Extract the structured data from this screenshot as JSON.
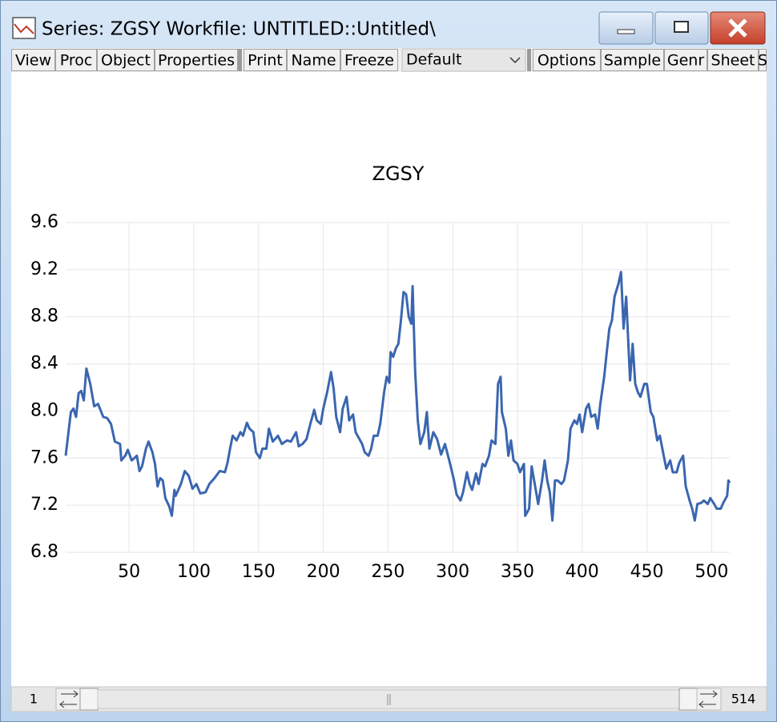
{
  "window": {
    "title": "Series: ZGSY    Workfile: UNTITLED::Untitled\\"
  },
  "toolbar": {
    "buttons": [
      "View",
      "Proc",
      "Object",
      "Properties",
      "Print",
      "Name",
      "Freeze"
    ],
    "dropdown": "Default",
    "buttons_right": [
      "Options",
      "Sample",
      "Genr",
      "Sheet",
      "S"
    ]
  },
  "scrollbar": {
    "start": "1",
    "end": "514"
  },
  "chart_data": {
    "type": "line",
    "title": "ZGSY",
    "color": "#3a66b0",
    "grid": true,
    "xlim": [
      1,
      514
    ],
    "xticks": [
      50,
      100,
      150,
      200,
      250,
      300,
      350,
      400,
      450,
      500
    ],
    "ylim": [
      6.8,
      9.6
    ],
    "yticks": [
      6.8,
      7.2,
      7.6,
      {
        "value": 8,
        "label": "8.0"
      },
      8.4,
      8.8,
      9.2,
      9.6
    ],
    "x": [
      1,
      5,
      7,
      9,
      11,
      13,
      15,
      17,
      20,
      23,
      26,
      30,
      33,
      36,
      39,
      43,
      44,
      47,
      49,
      52,
      56,
      58,
      60,
      63,
      65,
      68,
      70,
      72,
      74,
      76,
      78,
      81,
      83,
      85,
      86,
      90,
      93,
      96,
      99,
      102,
      105,
      109,
      112,
      116,
      120,
      124,
      126,
      128,
      130,
      133,
      136,
      138,
      141,
      143,
      146,
      148,
      151,
      153,
      156,
      158,
      161,
      165,
      168,
      172,
      175,
      179,
      181,
      184,
      187,
      190,
      193,
      195,
      198,
      200,
      203,
      206,
      208,
      210,
      213,
      215,
      218,
      220,
      223,
      225,
      228,
      230,
      232,
      235,
      237,
      239,
      242,
      244,
      247,
      249,
      251,
      252,
      254,
      256,
      258,
      260,
      262,
      264,
      266,
      268,
      269,
      271,
      273,
      275,
      278,
      280,
      282,
      285,
      288,
      291,
      294,
      298,
      301,
      303,
      306,
      308,
      311,
      313,
      315,
      318,
      320,
      323,
      325,
      328,
      330,
      333,
      335,
      337,
      338,
      341,
      343,
      345,
      347,
      350,
      352,
      355,
      356,
      359,
      361,
      364,
      366,
      369,
      371,
      373,
      375,
      377,
      379,
      381,
      384,
      386,
      389,
      391,
      394,
      396,
      398,
      400,
      403,
      405,
      407,
      410,
      412,
      414,
      417,
      419,
      421,
      423,
      425,
      428,
      430,
      432,
      434,
      437,
      439,
      441,
      443,
      445,
      448,
      450,
      453,
      455,
      458,
      460,
      463,
      465,
      468,
      470,
      473,
      475,
      478,
      480,
      483,
      485,
      487,
      489,
      492,
      494,
      497,
      499,
      502,
      504,
      507,
      509,
      512,
      513,
      514
    ],
    "values": [
      7.62,
      7.99,
      8.02,
      7.95,
      8.15,
      8.17,
      8.09,
      8.36,
      8.23,
      8.04,
      8.06,
      7.95,
      7.94,
      7.89,
      7.74,
      7.72,
      7.58,
      7.62,
      7.67,
      7.58,
      7.62,
      7.49,
      7.53,
      7.68,
      7.74,
      7.65,
      7.55,
      7.36,
      7.43,
      7.41,
      7.26,
      7.19,
      7.11,
      7.33,
      7.28,
      7.38,
      7.49,
      7.45,
      7.34,
      7.38,
      7.3,
      7.31,
      7.38,
      7.43,
      7.49,
      7.48,
      7.56,
      7.68,
      7.79,
      7.75,
      7.82,
      7.79,
      7.9,
      7.85,
      7.82,
      7.65,
      7.6,
      7.68,
      7.68,
      7.85,
      7.74,
      7.79,
      7.72,
      7.75,
      7.74,
      7.82,
      7.7,
      7.72,
      7.76,
      7.89,
      8.01,
      7.92,
      7.89,
      8.02,
      8.16,
      8.33,
      8.19,
      7.95,
      7.82,
      8.02,
      8.12,
      7.92,
      7.97,
      7.82,
      7.76,
      7.72,
      7.65,
      7.62,
      7.68,
      7.79,
      7.79,
      7.89,
      8.16,
      8.29,
      8.24,
      8.5,
      8.46,
      8.53,
      8.57,
      8.77,
      9.01,
      8.99,
      8.8,
      8.74,
      9.06,
      8.33,
      7.92,
      7.72,
      7.82,
      7.99,
      7.68,
      7.82,
      7.76,
      7.63,
      7.72,
      7.55,
      7.41,
      7.29,
      7.24,
      7.31,
      7.48,
      7.38,
      7.33,
      7.47,
      7.38,
      7.55,
      7.53,
      7.62,
      7.75,
      7.72,
      8.23,
      8.29,
      7.99,
      7.85,
      7.62,
      7.75,
      7.58,
      7.55,
      7.48,
      7.55,
      7.11,
      7.17,
      7.53,
      7.34,
      7.21,
      7.41,
      7.58,
      7.41,
      7.31,
      7.07,
      7.41,
      7.41,
      7.38,
      7.41,
      7.58,
      7.85,
      7.92,
      7.89,
      7.97,
      7.82,
      8.02,
      8.06,
      7.95,
      7.97,
      7.85,
      8.06,
      8.29,
      8.5,
      8.7,
      8.77,
      8.97,
      9.08,
      9.18,
      8.7,
      8.97,
      8.26,
      8.57,
      8.23,
      8.16,
      8.12,
      8.23,
      8.23,
      7.99,
      7.95,
      7.75,
      7.79,
      7.62,
      7.51,
      7.58,
      7.48,
      7.48,
      7.56,
      7.62,
      7.36,
      7.24,
      7.17,
      7.07,
      7.21,
      7.22,
      7.24,
      7.21,
      7.26,
      7.21,
      7.17,
      7.17,
      7.22,
      7.28,
      7.41,
      7.39
    ]
  }
}
